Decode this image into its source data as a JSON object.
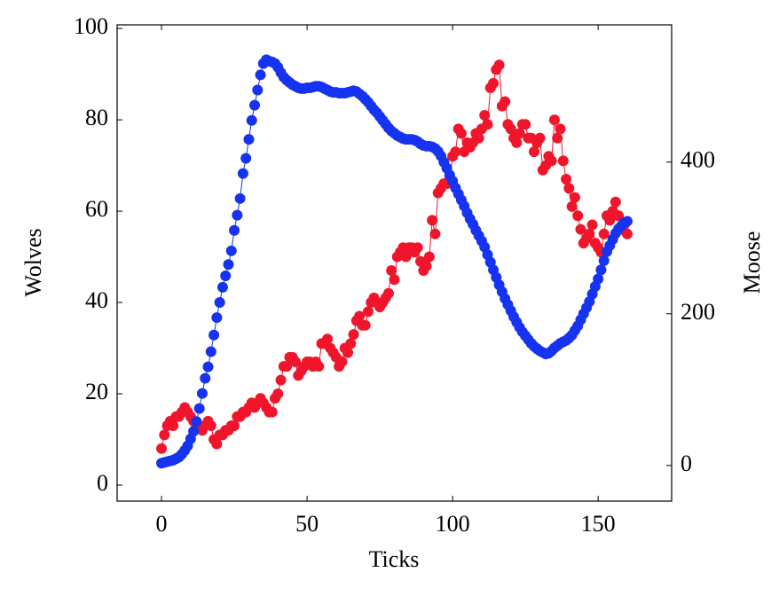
{
  "chart_data": {
    "type": "line",
    "x_label": "Ticks",
    "y_label": "Wolves",
    "y2_label": "Moose",
    "y_label_color": "#ff0000",
    "y2_label_color": "#0000ff",
    "x": [
      0,
      1,
      2,
      3,
      4,
      5,
      6,
      7,
      8,
      9,
      10,
      11,
      12,
      13,
      14,
      15,
      16,
      17,
      18,
      19,
      20,
      21,
      22,
      23,
      24,
      25,
      26,
      27,
      28,
      29,
      30,
      31,
      32,
      33,
      34,
      35,
      36,
      37,
      38,
      39,
      40,
      41,
      42,
      43,
      44,
      45,
      46,
      47,
      48,
      49,
      50,
      51,
      52,
      53,
      54,
      55,
      56,
      57,
      58,
      59,
      60,
      61,
      62,
      63,
      64,
      65,
      66,
      67,
      68,
      69,
      70,
      71,
      72,
      73,
      74,
      75,
      76,
      77,
      78,
      79,
      80,
      81,
      82,
      83,
      84,
      85,
      86,
      87,
      88,
      89,
      90,
      91,
      92,
      93,
      94,
      95,
      96,
      97,
      98,
      99,
      100,
      101,
      102,
      103,
      104,
      105,
      106,
      107,
      108,
      109,
      110,
      111,
      112,
      113,
      114,
      115,
      116,
      117,
      118,
      119,
      120,
      121,
      122,
      123,
      124,
      125,
      126,
      127,
      128,
      129,
      130,
      131,
      132,
      133,
      134,
      135,
      136,
      137,
      138,
      139,
      140,
      141,
      142,
      143,
      144,
      145,
      146,
      147,
      148,
      149,
      150,
      151,
      152,
      153,
      154,
      155,
      156,
      157,
      158,
      159,
      160
    ],
    "series": [
      {
        "name": "Wolves",
        "color": "#f0152a",
        "axis": "y",
        "values": [
          8,
          11,
          13,
          14,
          13,
          15,
          15,
          16,
          17,
          16,
          15,
          14,
          13,
          13,
          12,
          13,
          14,
          13,
          10,
          9,
          11,
          11,
          12,
          12,
          13,
          13,
          15,
          15,
          16,
          16,
          17,
          18,
          17,
          18,
          19,
          18,
          17,
          16,
          16,
          19,
          20,
          23,
          26,
          26,
          28,
          28,
          27,
          24,
          25,
          26,
          27,
          27,
          26,
          27,
          26,
          31,
          31,
          32,
          30,
          29,
          28,
          26,
          27,
          30,
          29,
          31,
          33,
          36,
          37,
          35,
          35,
          38,
          40,
          41,
          40,
          39,
          40,
          41,
          42,
          47,
          45,
          50,
          51,
          52,
          50,
          52,
          52,
          51,
          52,
          49,
          47,
          48,
          50,
          58,
          55,
          64,
          65,
          66,
          66,
          67,
          72,
          73,
          78,
          77,
          73,
          75,
          74,
          75,
          77,
          76,
          78,
          81,
          79,
          87,
          88,
          91,
          92,
          83,
          84,
          79,
          78,
          76,
          75,
          77,
          79,
          79,
          76,
          76,
          73,
          75,
          76,
          69,
          70,
          72,
          71,
          80,
          76,
          78,
          71,
          67,
          65,
          61,
          63,
          59,
          56,
          53,
          54,
          55,
          57,
          53,
          52,
          51,
          55,
          59,
          58,
          60,
          62,
          59,
          56,
          57,
          55
        ]
      },
      {
        "name": "Moose",
        "color": "#1533f0",
        "axis": "y2",
        "values": [
          3,
          4,
          5,
          6,
          7,
          9,
          11,
          15,
          20,
          26,
          35,
          45,
          58,
          75,
          95,
          115,
          130,
          150,
          172,
          195,
          215,
          235,
          250,
          265,
          283,
          310,
          330,
          352,
          385,
          405,
          430,
          455,
          475,
          495,
          515,
          530,
          535,
          533,
          532,
          530,
          525,
          518,
          512,
          508,
          505,
          502,
          500,
          498,
          497,
          497,
          498,
          498,
          499,
          500,
          500,
          499,
          497,
          495,
          493,
          492,
          492,
          491,
          491,
          491,
          492,
          493,
          494,
          493,
          490,
          487,
          483,
          479,
          474,
          469,
          465,
          460,
          455,
          450,
          445,
          441,
          438,
          435,
          433,
          431,
          430,
          430,
          430,
          429,
          427,
          424,
          422,
          421,
          421,
          420,
          418,
          414,
          408,
          400,
          392,
          383,
          375,
          366,
          358,
          350,
          342,
          333,
          325,
          318,
          310,
          303,
          296,
          288,
          278,
          268,
          258,
          248,
          238,
          229,
          220,
          212,
          204,
          196,
          189,
          182,
          176,
          171,
          166,
          161,
          157,
          154,
          151,
          149,
          147,
          148,
          151,
          155,
          158,
          161,
          163,
          165,
          168,
          172,
          178,
          184,
          192,
          200,
          208,
          216,
          226,
          236,
          246,
          258,
          270,
          282,
          290,
          298,
          306,
          312,
          316,
          320,
          322
        ]
      }
    ],
    "xlim": [
      -15.25,
      175.25
    ],
    "xticks": [
      0,
      50,
      100,
      150
    ],
    "ylim": [
      -3.5,
      100.8
    ],
    "yticks": [
      0,
      20,
      40,
      60,
      80,
      100
    ],
    "y2lim": [
      -47,
      581
    ],
    "y2ticks": [
      0,
      200,
      400
    ]
  }
}
